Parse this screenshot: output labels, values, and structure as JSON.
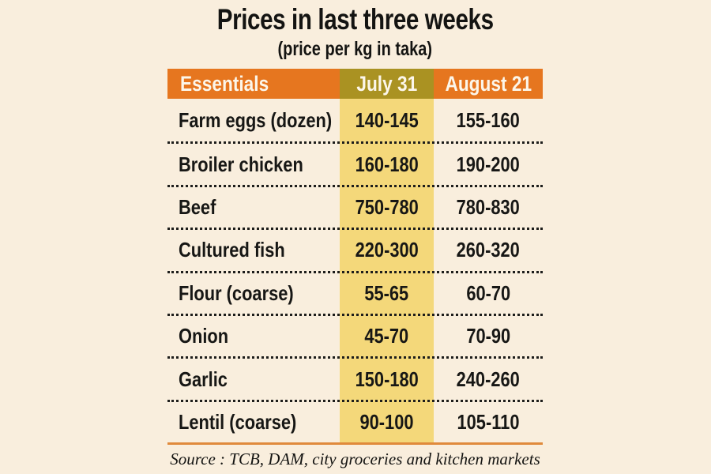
{
  "title": "Prices in last three weeks",
  "subtitle": "(price per kg in taka)",
  "chart_data": {
    "type": "table",
    "title": "Prices in last three weeks",
    "subtitle": "(price per kg in taka)",
    "columns": [
      "Essentials",
      "July 31",
      "August 21"
    ],
    "rows": [
      [
        "Farm eggs (dozen)",
        "140-145",
        "155-160"
      ],
      [
        "Broiler chicken",
        "160-180",
        "190-200"
      ],
      [
        "Beef",
        "750-780",
        "780-830"
      ],
      [
        "Cultured fish",
        "220-300",
        "260-320"
      ],
      [
        "Flour (coarse)",
        "55-65",
        "60-70"
      ],
      [
        "Onion",
        "45-70",
        "70-90"
      ],
      [
        "Garlic",
        "150-180",
        "240-260"
      ],
      [
        "Lentil (coarse)",
        "90-100",
        "105-110"
      ]
    ],
    "highlight_column": "July 31",
    "source": "Source : TCB, DAM, city groceries and kitchen markets"
  },
  "colors": {
    "background": "#f9eedd",
    "header_orange": "#e6761f",
    "header_olive": "#aa9222",
    "highlight_yellow": "#f4d87a",
    "rule_orange": "#e08a3c",
    "text": "#1b1b19",
    "header_text": "#fcf6ea"
  }
}
